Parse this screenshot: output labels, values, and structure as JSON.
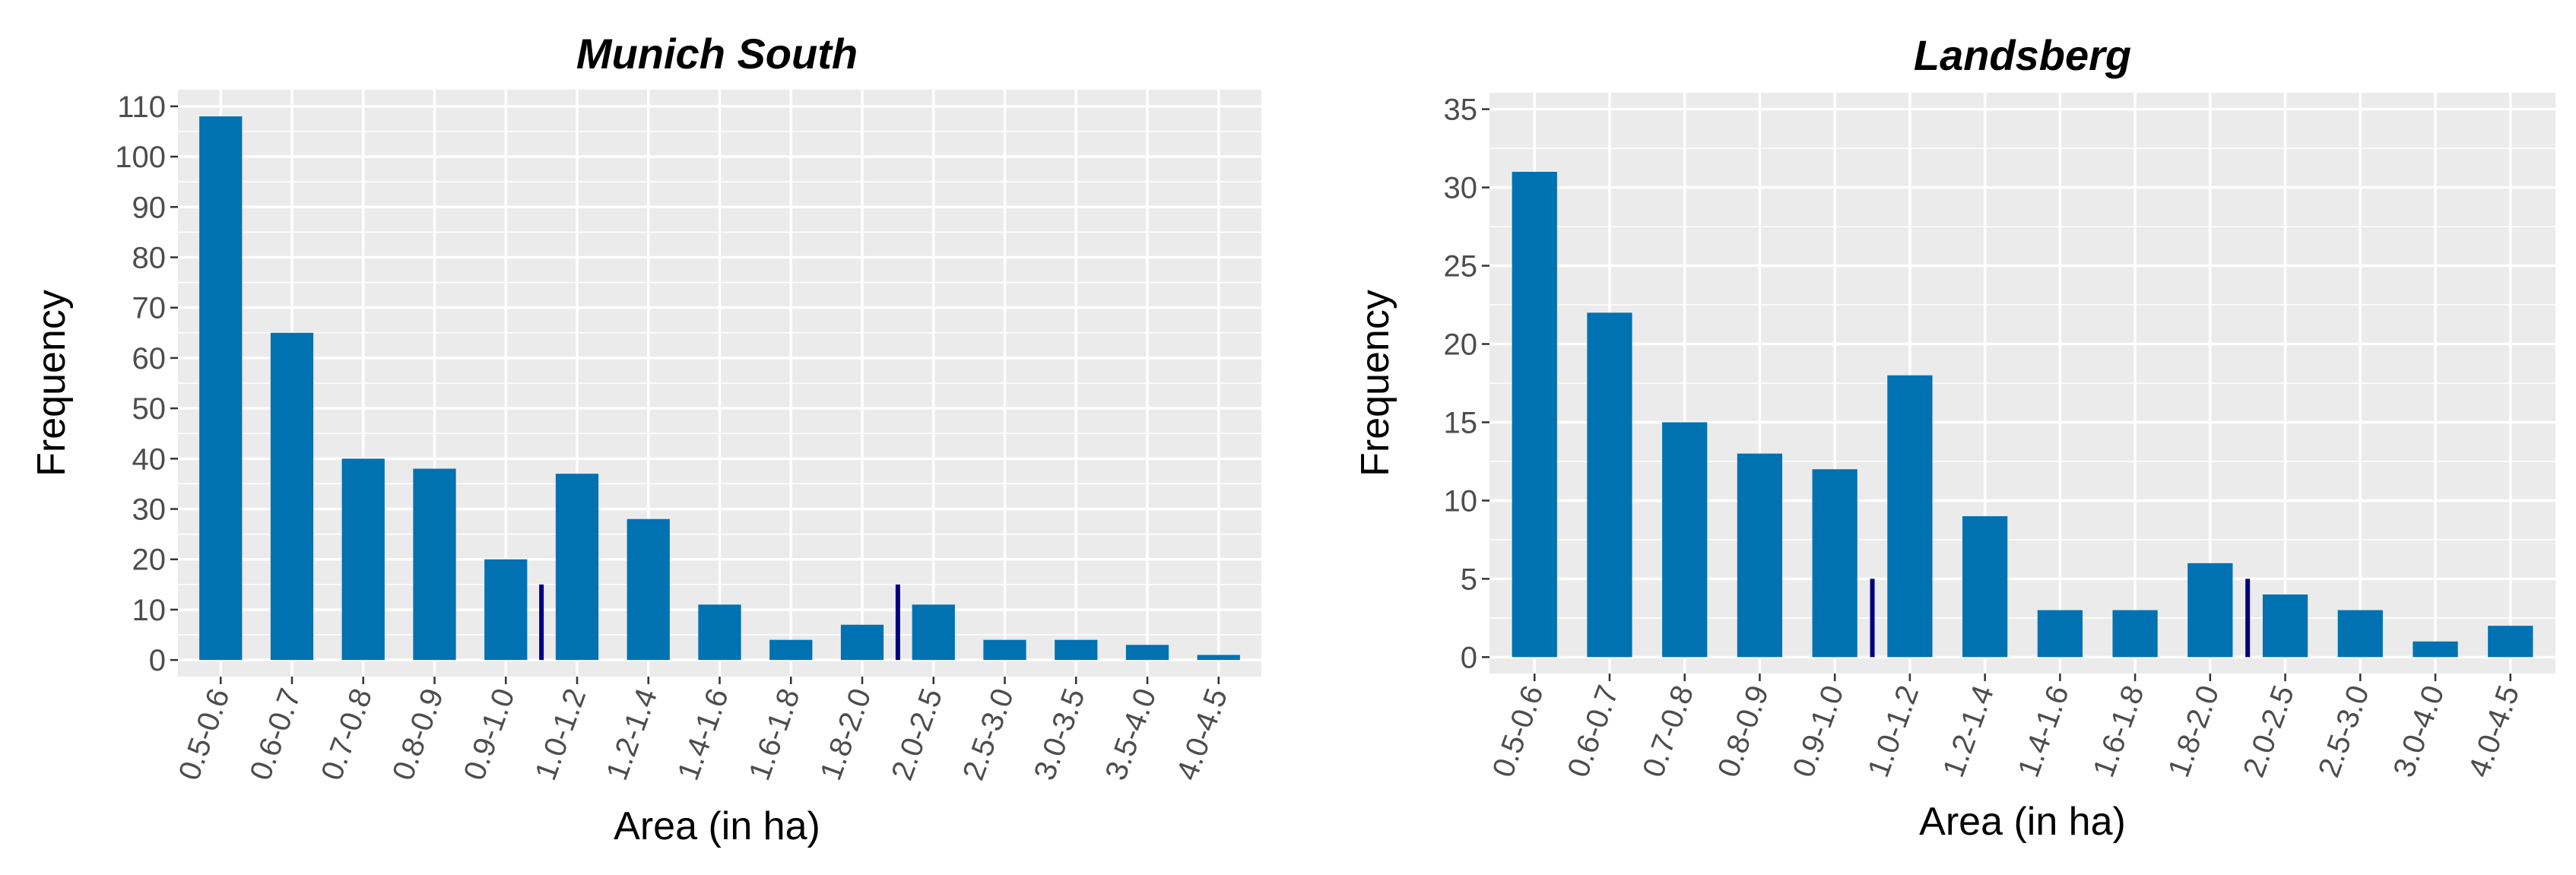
{
  "colors": {
    "panel_background": "#ebebeb",
    "grid": "#ffffff",
    "bar": "#0072b2",
    "marker": "#000080",
    "tick_text": "#4d4d4d",
    "tick_mark": "#333333"
  },
  "chart_data": [
    {
      "type": "bar",
      "title": "Munich South",
      "xlabel": "Area (in ha)",
      "ylabel": "Frequency",
      "ylim": [
        0,
        110
      ],
      "yticks": [
        0,
        10,
        20,
        30,
        40,
        50,
        60,
        70,
        80,
        90,
        100,
        110
      ],
      "grid": true,
      "categories": [
        "0.5-0.6",
        "0.6-0.7",
        "0.7-0.8",
        "0.8-0.9",
        "0.9-1.0",
        "1.0-1.2",
        "1.2-1.4",
        "1.4-1.6",
        "1.6-1.8",
        "1.8-2.0",
        "2.0-2.5",
        "2.5-3.0",
        "3.0-3.5",
        "3.5-4.0",
        "4.0-4.5"
      ],
      "values": [
        108,
        65,
        40,
        38,
        20,
        37,
        28,
        11,
        4,
        7,
        11,
        4,
        4,
        3,
        1
      ],
      "markers": [
        {
          "between": [
            "0.9-1.0",
            "1.0-1.2"
          ],
          "height": 15
        },
        {
          "between": [
            "1.8-2.0",
            "2.0-2.5"
          ],
          "height": 15
        }
      ]
    },
    {
      "type": "bar",
      "title": "Landsberg",
      "xlabel": "Area (in ha)",
      "ylabel": "Frequency",
      "ylim": [
        0,
        35
      ],
      "yticks": [
        0,
        5,
        10,
        15,
        20,
        25,
        30,
        35
      ],
      "grid": true,
      "categories": [
        "0.5-0.6",
        "0.6-0.7",
        "0.7-0.8",
        "0.8-0.9",
        "0.9-1.0",
        "1.0-1.2",
        "1.2-1.4",
        "1.4-1.6",
        "1.6-1.8",
        "1.8-2.0",
        "2.0-2.5",
        "2.5-3.0",
        "3.0-4.0",
        "4.0-4.5"
      ],
      "values": [
        31,
        22,
        15,
        13,
        12,
        18,
        9,
        3,
        3,
        6,
        4,
        3,
        1,
        2
      ],
      "markers": [
        {
          "between": [
            "0.9-1.0",
            "1.0-1.2"
          ],
          "height": 5
        },
        {
          "between": [
            "1.8-2.0",
            "2.0-2.5"
          ],
          "height": 5
        }
      ]
    }
  ]
}
